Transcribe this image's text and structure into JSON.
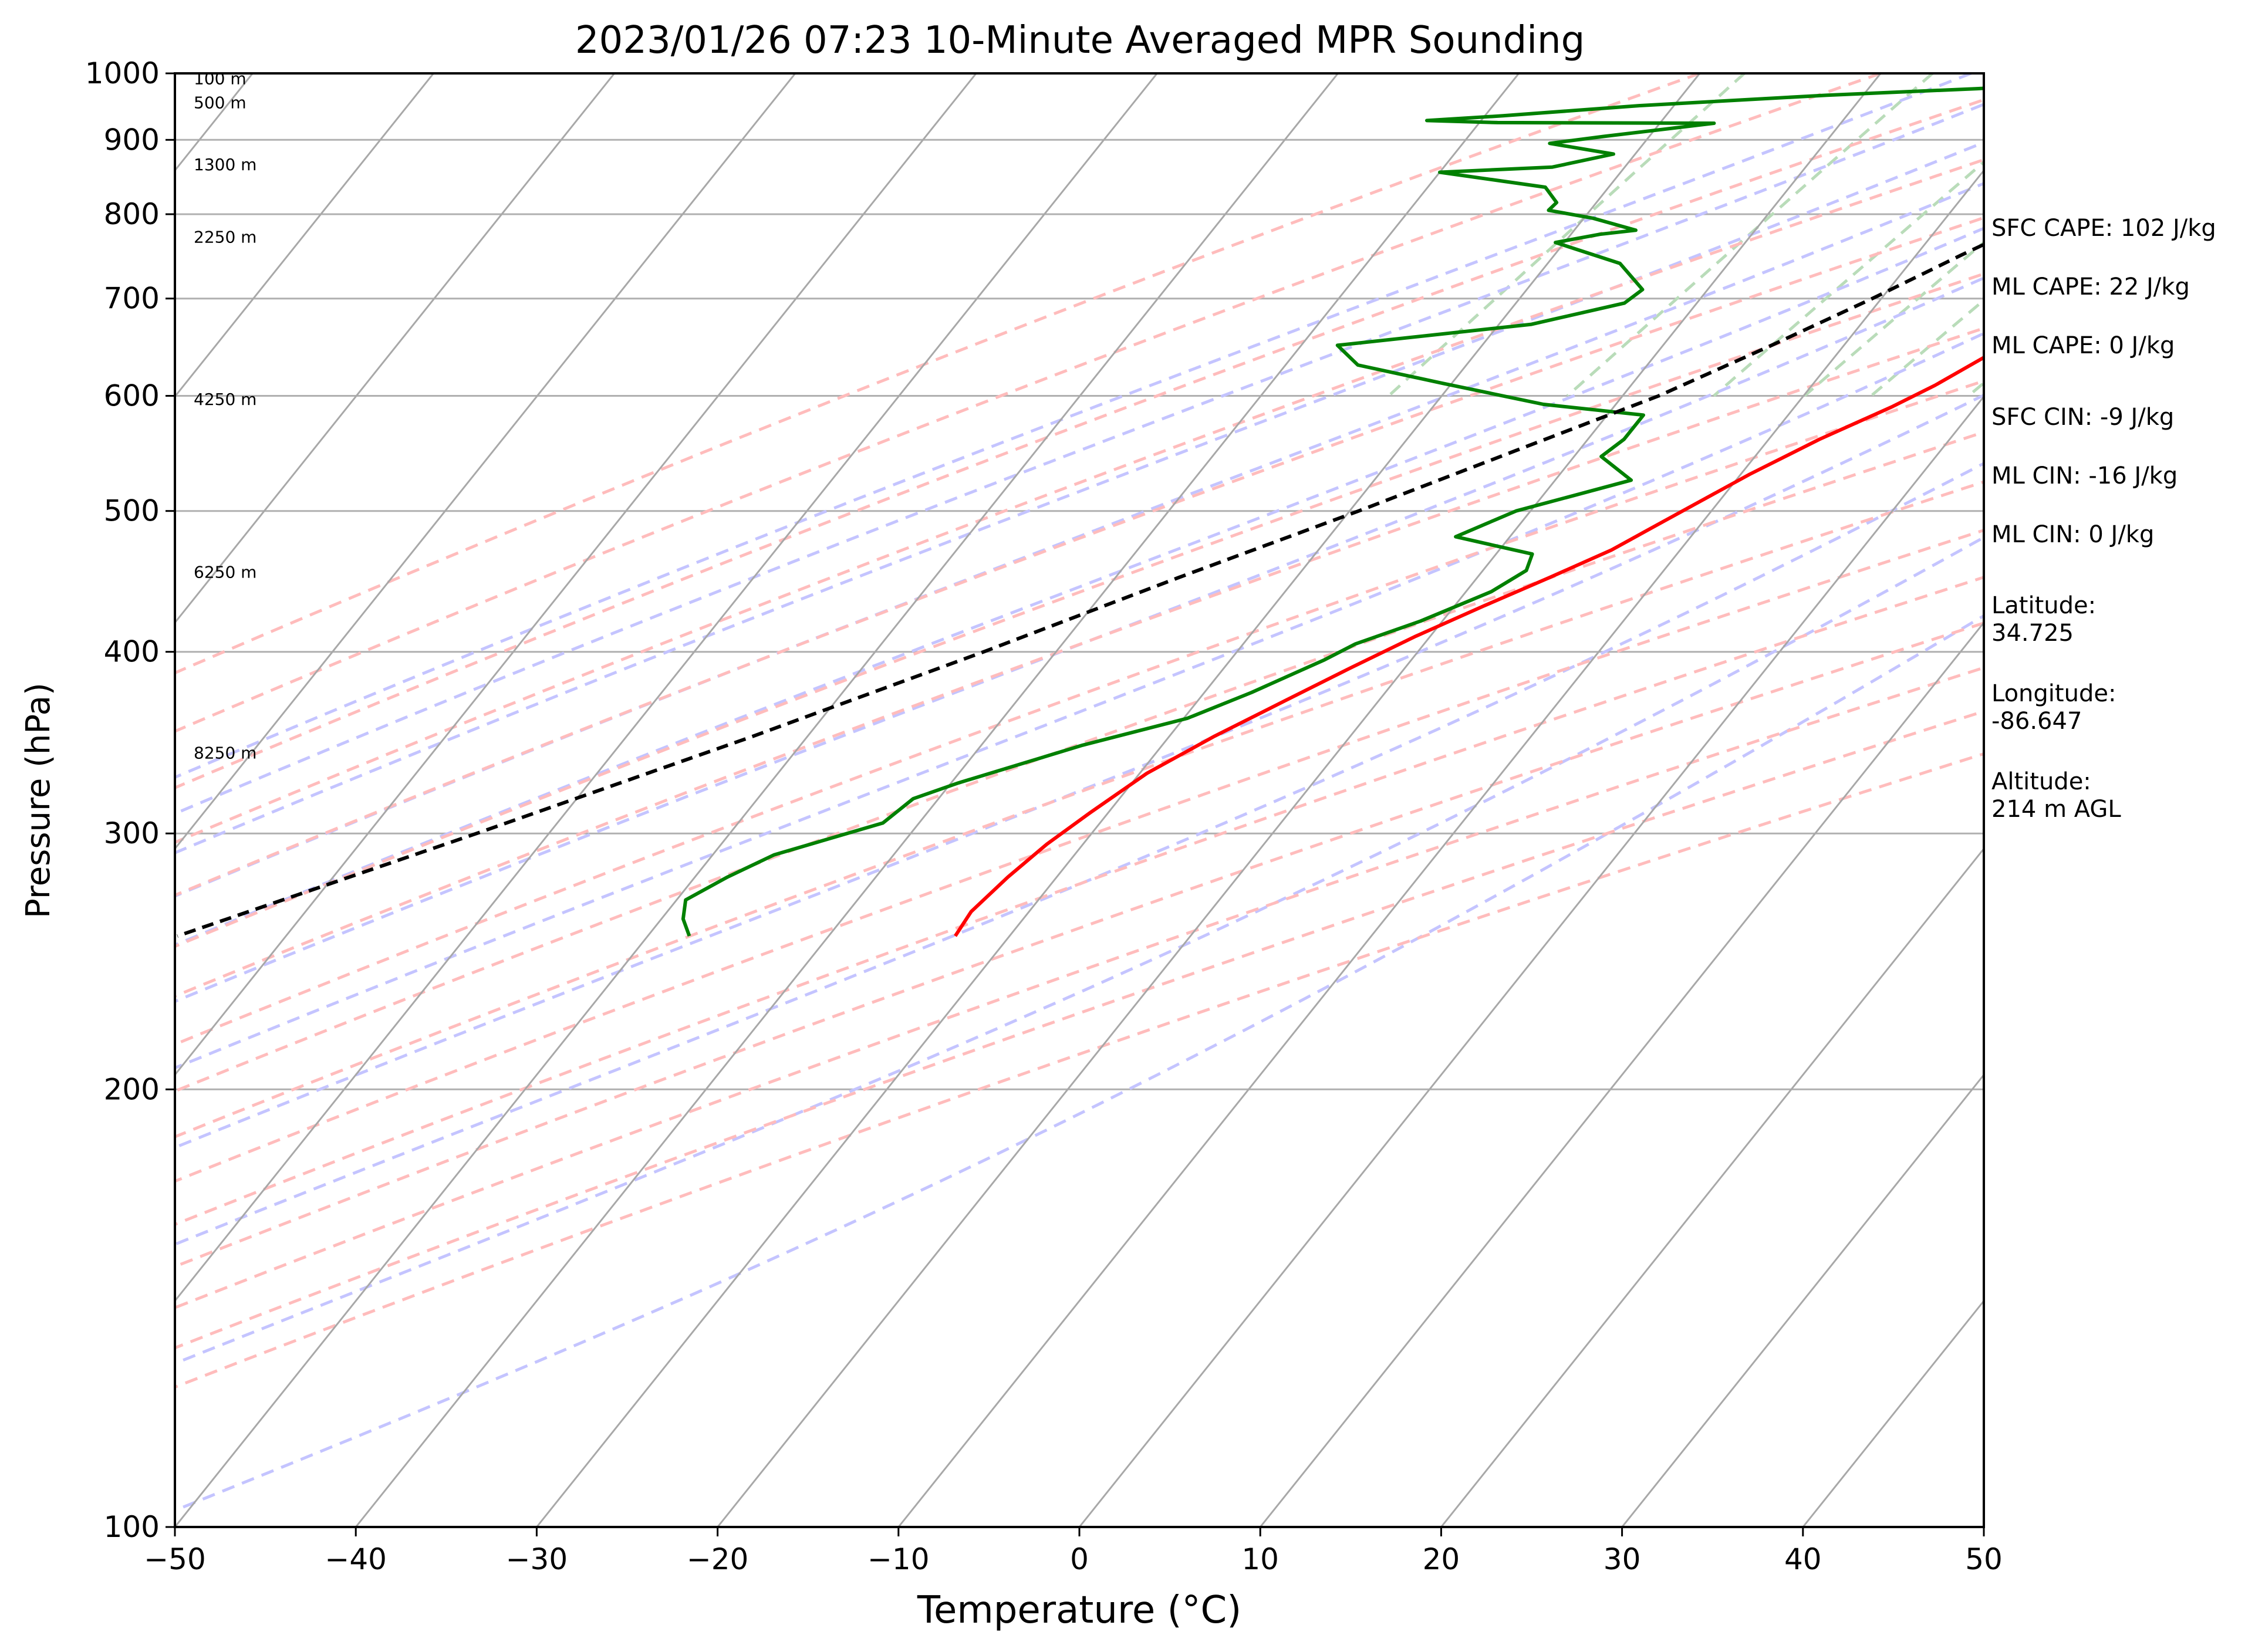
{
  "chart_data": {
    "type": "line",
    "title": "2023/01/26 07:23 10-Minute Averaged MPR Sounding",
    "xlabel": "Temperature (°C)",
    "ylabel": "Pressure (hPa)",
    "xlim": [
      -50,
      50
    ],
    "ylim": [
      1000,
      100
    ],
    "y_scale": "log",
    "x_ticks": [
      -50,
      -40,
      -30,
      -20,
      -10,
      0,
      10,
      20,
      30,
      40,
      50
    ],
    "x_tick_labels": [
      "−50",
      "−40",
      "−30",
      "−20",
      "−10",
      "0",
      "10",
      "20",
      "30",
      "40",
      "50"
    ],
    "y_ticks": [
      1000,
      900,
      800,
      700,
      600,
      500,
      400,
      300,
      200,
      100
    ],
    "y_tick_labels": [
      "1000",
      "900",
      "800",
      "700",
      "600",
      "500",
      "400",
      "300",
      "200",
      "100"
    ],
    "grid": "horizontal at y ticks",
    "skew_isotherms_c": [
      -150,
      -140,
      -130,
      -120,
      -110,
      -100,
      -90,
      -80,
      -70,
      -60,
      -50,
      -40,
      -30,
      -20,
      -10,
      0,
      10,
      20,
      30,
      40,
      50
    ],
    "dry_adiabats_c": [
      -30,
      -20,
      -10,
      0,
      10,
      20,
      30,
      40,
      50,
      60,
      70,
      80,
      90,
      100,
      110,
      120
    ],
    "moist_adiabats_c": [
      -15,
      -10,
      -5,
      0,
      5,
      10,
      15,
      20,
      25,
      30,
      35
    ],
    "mixing_ratios_gkg": [
      0.4,
      1,
      2,
      3,
      4,
      6,
      8,
      10,
      14,
      20
    ],
    "series": [
      {
        "name": "Temperature",
        "color": "#ff0000",
        "points": [
          [
            4.6,
            990
          ],
          [
            5.2,
            985
          ],
          [
            4.0,
            975
          ],
          [
            2.0,
            962
          ],
          [
            -1.0,
            948
          ],
          [
            -2.5,
            930
          ],
          [
            -3.4,
            910
          ],
          [
            -3.6,
            890
          ],
          [
            -3.4,
            850
          ],
          [
            -2.6,
            825
          ],
          [
            -2.0,
            810
          ],
          [
            -1.2,
            780
          ],
          [
            -0.6,
            745
          ],
          [
            -0.6,
            700
          ],
          [
            -0.8,
            670
          ],
          [
            -1.6,
            640
          ],
          [
            -3.2,
            610
          ],
          [
            -4.6,
            590
          ],
          [
            -7.2,
            560
          ],
          [
            -9.5,
            530
          ],
          [
            -11.6,
            500
          ],
          [
            -13.8,
            470
          ],
          [
            -16.0,
            450
          ],
          [
            -18.4,
            430
          ],
          [
            -20.8,
            410
          ],
          [
            -23.0,
            390
          ],
          [
            -25.2,
            370
          ],
          [
            -27.5,
            350
          ],
          [
            -29.6,
            330
          ],
          [
            -31.0,
            310
          ],
          [
            -32.0,
            295
          ],
          [
            -32.7,
            280
          ],
          [
            -33.2,
            265
          ],
          [
            -33.0,
            255
          ]
        ]
      },
      {
        "name": "Dewpoint",
        "color": "#008000",
        "points": [
          [
            2.3,
            990
          ],
          [
            -5.2,
            988
          ],
          [
            -10.0,
            982
          ],
          [
            -14.0,
            976
          ],
          [
            -22.0,
            966
          ],
          [
            -32.0,
            950
          ],
          [
            -39.0,
            935
          ],
          [
            -43.0,
            928
          ],
          [
            -39.0,
            925
          ],
          [
            -27.0,
            924
          ],
          [
            -32.5,
            905
          ],
          [
            -35.2,
            895
          ],
          [
            -31.2,
            880
          ],
          [
            -34.0,
            862
          ],
          [
            -40.0,
            855
          ],
          [
            -33.5,
            835
          ],
          [
            -32.2,
            815
          ],
          [
            -32.3,
            805
          ],
          [
            -29.5,
            795
          ],
          [
            -26.6,
            780
          ],
          [
            -28.4,
            775
          ],
          [
            -30.5,
            765
          ],
          [
            -26.0,
            740
          ],
          [
            -23.6,
            710
          ],
          [
            -24.0,
            695
          ],
          [
            -28.2,
            672
          ],
          [
            -38.0,
            650
          ],
          [
            -36.0,
            630
          ],
          [
            -30.5,
            612
          ],
          [
            -24.0,
            592
          ],
          [
            -18.0,
            582
          ],
          [
            -18.0,
            560
          ],
          [
            -18.5,
            545
          ],
          [
            -15.8,
            525
          ],
          [
            -20.8,
            500
          ],
          [
            -23.0,
            480
          ],
          [
            -18.0,
            467
          ],
          [
            -17.6,
            455
          ],
          [
            -18.6,
            440
          ],
          [
            -21.2,
            420
          ],
          [
            -23.8,
            405
          ],
          [
            -24.8,
            395
          ],
          [
            -27.4,
            375
          ],
          [
            -29.8,
            360
          ],
          [
            -34.4,
            345
          ],
          [
            -39.6,
            325
          ],
          [
            -41.4,
            317
          ],
          [
            -42.0,
            305
          ],
          [
            -46.6,
            290
          ],
          [
            -48.2,
            280
          ],
          [
            -49.5,
            270
          ],
          [
            -48.8,
            262
          ],
          [
            -47.7,
            255
          ]
        ]
      },
      {
        "name": "Parcel",
        "color": "#000000",
        "points": [
          [
            4.6,
            990
          ],
          [
            2.5,
            945
          ],
          [
            0.6,
            910
          ],
          [
            -2.2,
            850
          ],
          [
            -4.5,
            800
          ],
          [
            -7.5,
            750
          ],
          [
            -10.5,
            700
          ],
          [
            -14.0,
            650
          ],
          [
            -18.0,
            600
          ],
          [
            -23.5,
            550
          ],
          [
            -29.5,
            500
          ],
          [
            -36.5,
            450
          ],
          [
            -44.0,
            400
          ],
          [
            -53.0,
            350
          ],
          [
            -64.0,
            300
          ],
          [
            -76.0,
            255
          ]
        ]
      }
    ],
    "height_labels": [
      {
        "text": "100 m",
        "p": 992
      },
      {
        "text": "500 m",
        "p": 955
      },
      {
        "text": "1300 m",
        "p": 866
      },
      {
        "text": "2250 m",
        "p": 772
      },
      {
        "text": "4250 m",
        "p": 597
      },
      {
        "text": "6250 m",
        "p": 454
      },
      {
        "text": "8250 m",
        "p": 341
      }
    ]
  },
  "stats": {
    "lines": [
      "SFC CAPE: 102 J/kg",
      "ML CAPE: 22 J/kg",
      "ML CAPE: 0 J/kg",
      "SFC CIN: -9 J/kg",
      "ML CIN: -16 J/kg",
      "ML CIN: 0 J/kg",
      "Latitude:",
      "34.725",
      "Longitude:",
      "-86.647",
      "Altitude:",
      "214 m AGL"
    ]
  }
}
